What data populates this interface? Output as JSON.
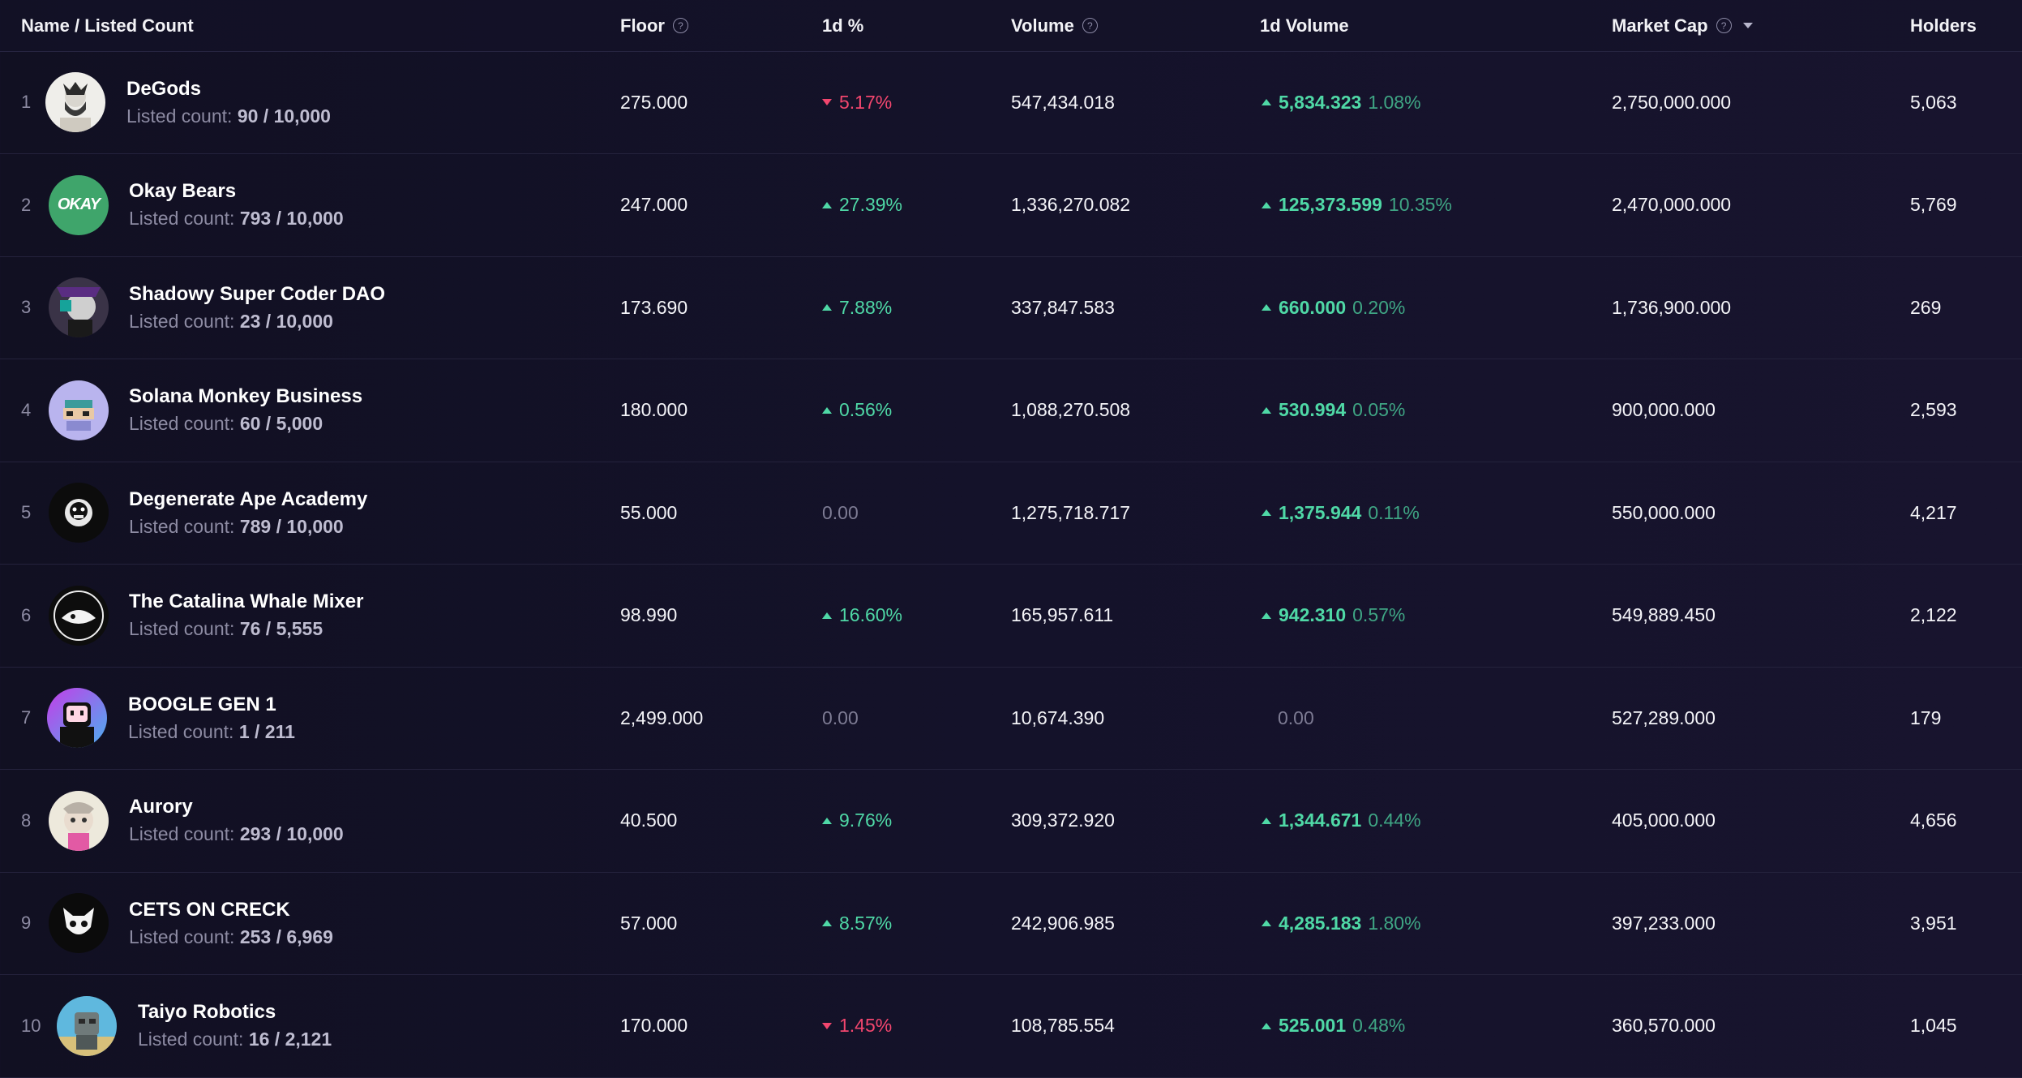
{
  "columns": {
    "name": "Name / Listed Count",
    "floor": "Floor",
    "pct_1d": "1d %",
    "volume": "Volume",
    "volume_1d": "1d Volume",
    "market_cap": "Market Cap",
    "holders": "Holders"
  },
  "listed_label": "Listed count:",
  "rows": [
    {
      "rank": "1",
      "name": "DeGods",
      "listed": "90 / 10,000",
      "floor": "275.000",
      "pct": "5.17%",
      "pct_dir": "down",
      "volume": "547,434.018",
      "vol1d": "5,834.323",
      "vol1d_pct": "1.08%",
      "vol1d_dir": "up",
      "mcap": "2,750,000.000",
      "holders": "5,063",
      "avatar": "degods-avatar"
    },
    {
      "rank": "2",
      "name": "Okay Bears",
      "listed": "793 / 10,000",
      "floor": "247.000",
      "pct": "27.39%",
      "pct_dir": "up",
      "volume": "1,336,270.082",
      "vol1d": "125,373.599",
      "vol1d_pct": "10.35%",
      "vol1d_dir": "up",
      "mcap": "2,470,000.000",
      "holders": "5,769",
      "avatar": "okay-bears-avatar",
      "avatar_text": "OKAY"
    },
    {
      "rank": "3",
      "name": "Shadowy Super Coder DAO",
      "listed": "23 / 10,000",
      "floor": "173.690",
      "pct": "7.88%",
      "pct_dir": "up",
      "volume": "337,847.583",
      "vol1d": "660.000",
      "vol1d_pct": "0.20%",
      "vol1d_dir": "up",
      "mcap": "1,736,900.000",
      "holders": "269",
      "avatar": "shadowy-avatar"
    },
    {
      "rank": "4",
      "name": "Solana Monkey Business",
      "listed": "60 / 5,000",
      "floor": "180.000",
      "pct": "0.56%",
      "pct_dir": "up",
      "volume": "1,088,270.508",
      "vol1d": "530.994",
      "vol1d_pct": "0.05%",
      "vol1d_dir": "up",
      "mcap": "900,000.000",
      "holders": "2,593",
      "avatar": "smb-avatar"
    },
    {
      "rank": "5",
      "name": "Degenerate Ape Academy",
      "listed": "789 / 10,000",
      "floor": "55.000",
      "pct": "0.00",
      "pct_dir": "neutral",
      "volume": "1,275,718.717",
      "vol1d": "1,375.944",
      "vol1d_pct": "0.11%",
      "vol1d_dir": "up",
      "mcap": "550,000.000",
      "holders": "4,217",
      "avatar": "ape-avatar"
    },
    {
      "rank": "6",
      "name": "The Catalina Whale Mixer",
      "listed": "76 / 5,555",
      "floor": "98.990",
      "pct": "16.60%",
      "pct_dir": "up",
      "volume": "165,957.611",
      "vol1d": "942.310",
      "vol1d_pct": "0.57%",
      "vol1d_dir": "up",
      "mcap": "549,889.450",
      "holders": "2,122",
      "avatar": "catalina-avatar"
    },
    {
      "rank": "7",
      "name": "BOOGLE GEN 1",
      "listed": "1 / 211",
      "floor": "2,499.000",
      "pct": "0.00",
      "pct_dir": "neutral",
      "volume": "10,674.390",
      "vol1d": "0.00",
      "vol1d_pct": "",
      "vol1d_dir": "neutral",
      "mcap": "527,289.000",
      "holders": "179",
      "avatar": "boogle-avatar"
    },
    {
      "rank": "8",
      "name": "Aurory",
      "listed": "293 / 10,000",
      "floor": "40.500",
      "pct": "9.76%",
      "pct_dir": "up",
      "volume": "309,372.920",
      "vol1d": "1,344.671",
      "vol1d_pct": "0.44%",
      "vol1d_dir": "up",
      "mcap": "405,000.000",
      "holders": "4,656",
      "avatar": "aurory-avatar"
    },
    {
      "rank": "9",
      "name": "CETS ON CRECK",
      "listed": "253 / 6,969",
      "floor": "57.000",
      "pct": "8.57%",
      "pct_dir": "up",
      "volume": "242,906.985",
      "vol1d": "4,285.183",
      "vol1d_pct": "1.80%",
      "vol1d_dir": "up",
      "mcap": "397,233.000",
      "holders": "3,951",
      "avatar": "cets-avatar"
    },
    {
      "rank": "10",
      "name": "Taiyo Robotics",
      "listed": "16 / 2,121",
      "floor": "170.000",
      "pct": "1.45%",
      "pct_dir": "down",
      "volume": "108,785.554",
      "vol1d": "525.001",
      "vol1d_pct": "0.48%",
      "vol1d_dir": "up",
      "mcap": "360,570.000",
      "holders": "1,045",
      "avatar": "taiyo-avatar"
    }
  ]
}
